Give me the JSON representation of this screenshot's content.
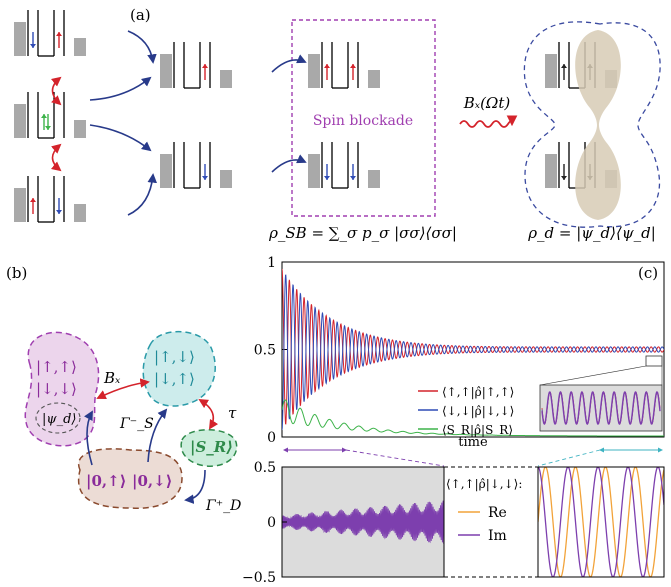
{
  "panels": {
    "a": "(a)",
    "b": "(b)",
    "c": "(c)"
  },
  "panel_a": {
    "spin_blockade_label": "Spin blockade",
    "drive_label": "Bₓ(Ωt)",
    "rho_sb": "ρ_SB = ∑_σ p_σ |σσ⟩⟨σσ|",
    "rho_d": "ρ_d = |ψ_d⟩⟨ψ_d|"
  },
  "panel_b": {
    "blob_pink_line1": "|↑,↑⟩",
    "blob_pink_line2": "|↓,↓⟩",
    "psi_d": "|ψ_d⟩",
    "blob_cyan_line1": "|↑,↓⟩",
    "blob_cyan_line2": "|↓,↑⟩",
    "sr": "|S_R⟩",
    "blob_brown_left": "|0,↑⟩",
    "blob_brown_right": "|0,↓⟩",
    "bx": "Bₓ",
    "tau": "τ",
    "gamma_s": "Γ⁻_S",
    "gamma_d": "Γ⁺_D",
    "colors": {
      "pink": "#ecd5ec",
      "cyan": "#cdecec",
      "brown": "#ecdcd5",
      "green": "#cdeedd",
      "arrow_red": "#d4232b",
      "arrow_blue": "#283a8a"
    }
  },
  "chart_data": [
    {
      "type": "line",
      "panel": "(c) upper",
      "xlabel": "time",
      "ylabel": "",
      "yticks": [
        "0",
        "0.5",
        "1"
      ],
      "ylim": [
        0,
        1
      ],
      "xlim": [
        0,
        1
      ],
      "series": [
        {
          "name": "⟨↑,↑|ρ̂|↑,↑⟩",
          "color": "#d4232b",
          "start": 0.5,
          "amplitude": 0.46,
          "decay": 7.5,
          "cycles": 52,
          "phase": 0,
          "floor": 0.5
        },
        {
          "name": "⟨↓,↓|ρ̂|↓,↓⟩",
          "color": "#2f4bb5",
          "start": 0.5,
          "amplitude": 0.46,
          "decay": 7.5,
          "cycles": 52,
          "phase": 3.14159,
          "floor": 0.5
        },
        {
          "name": "⟨S_R|ρ̂|S_R⟩",
          "color": "#3db34a",
          "start": 0.15,
          "amplitude": 0.07,
          "decay": 6.0,
          "cycles": 52,
          "phase": 0,
          "floor": 0.0
        }
      ]
    },
    {
      "type": "line",
      "panel": "(c) lower",
      "title": "⟨↑,↑|ρ̂|↓,↓⟩:",
      "yticks": [
        "0.5",
        "0",
        "−0.5"
      ],
      "ylim": [
        -0.5,
        0.5
      ],
      "series": [
        {
          "name": "Re",
          "color": "#f2a33a"
        },
        {
          "name": "Im",
          "color": "#7d3fae"
        }
      ]
    }
  ]
}
